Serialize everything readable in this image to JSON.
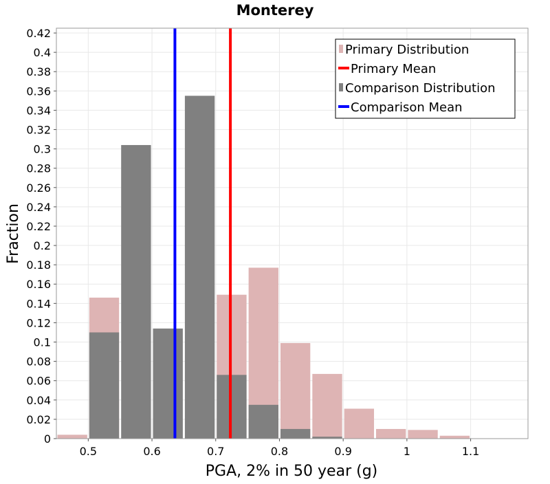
{
  "chart_data": {
    "type": "bar",
    "title": "Monterey",
    "xlabel": "PGA, 2% in 50 year (g)",
    "ylabel": "Fraction",
    "xlim": [
      0.45,
      1.19
    ],
    "ylim": [
      0,
      0.425
    ],
    "x_ticks": [
      "0.5",
      "0.6",
      "0.7",
      "0.8",
      "0.9",
      "1",
      "1.1"
    ],
    "y_ticks": [
      "0",
      "0.02",
      "0.04",
      "0.06",
      "0.08",
      "0.1",
      "0.12",
      "0.14",
      "0.16",
      "0.18",
      "0.2",
      "0.22",
      "0.24",
      "0.26",
      "0.28",
      "0.3",
      "0.32",
      "0.34",
      "0.36",
      "0.38",
      "0.4",
      "0.42"
    ],
    "bin_width": 0.05,
    "bin_centers": [
      0.475,
      0.525,
      0.575,
      0.625,
      0.675,
      0.725,
      0.775,
      0.825,
      0.875,
      0.925,
      0.975,
      1.025,
      1.075,
      1.125
    ],
    "grid": true,
    "legend_position": "top-right",
    "series": [
      {
        "name": "Primary Distribution",
        "kind": "bar",
        "color": "#deb4b4",
        "values": [
          0.004,
          0.146,
          0.0,
          0.0,
          0.0,
          0.149,
          0.177,
          0.099,
          0.067,
          0.031,
          0.01,
          0.009,
          0.003,
          0.0
        ]
      },
      {
        "name": "Primary Mean",
        "kind": "vline",
        "color": "#ff0000",
        "x": 0.723
      },
      {
        "name": "Comparison Distribution",
        "kind": "bar",
        "color": "#808080",
        "values": [
          0.0,
          0.11,
          0.304,
          0.114,
          0.355,
          0.066,
          0.035,
          0.01,
          0.002,
          0.0,
          0.0,
          0.0,
          0.0,
          0.0
        ]
      },
      {
        "name": "Comparison Mean",
        "kind": "vline",
        "color": "#0000ff",
        "x": 0.636
      }
    ]
  }
}
